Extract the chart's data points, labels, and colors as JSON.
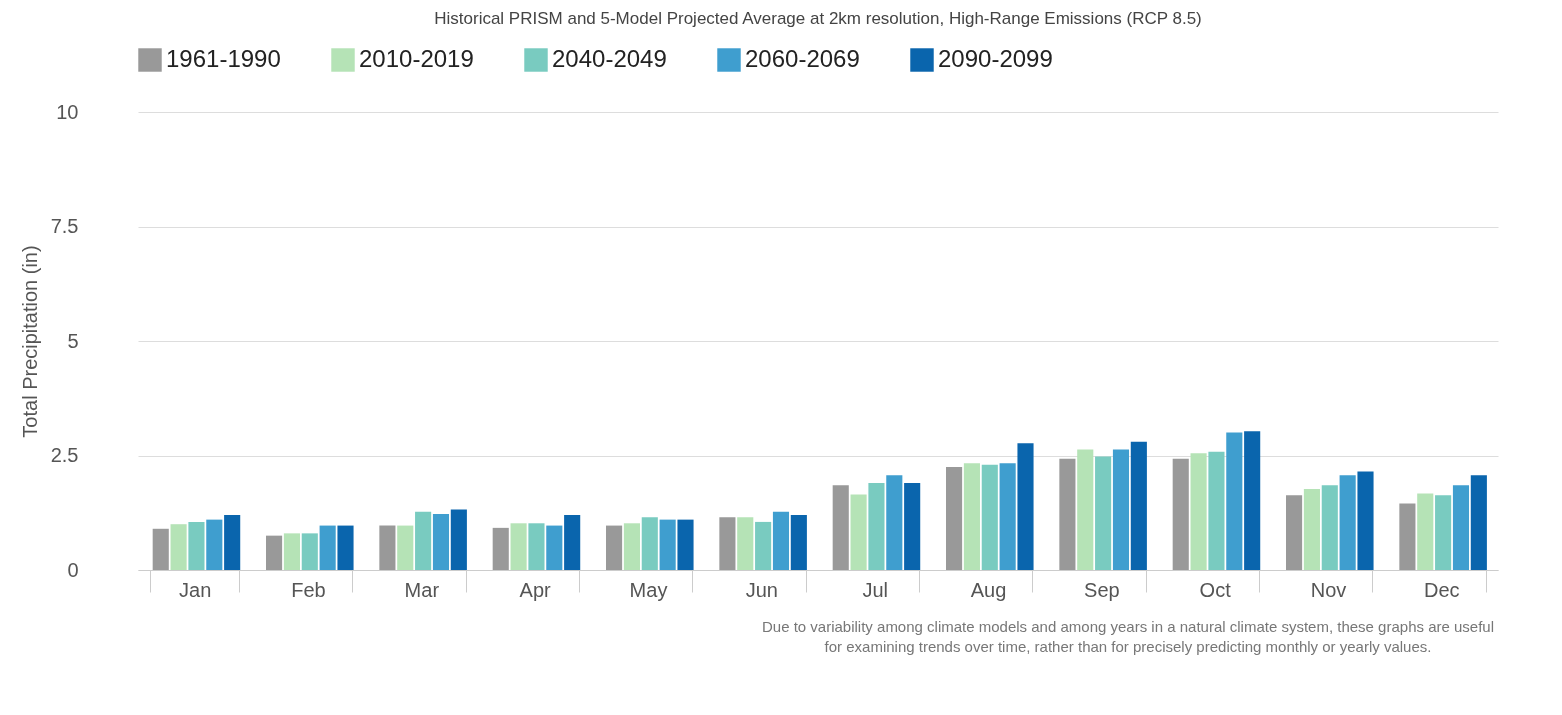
{
  "chart_data": {
    "type": "bar",
    "title": "Historical PRISM and 5-Model Projected Average at 2km resolution, High-Range Emissions (RCP 8.5)",
    "ylabel": "Total Precipitation (in)",
    "categories": [
      "Jan",
      "Feb",
      "Mar",
      "Apr",
      "May",
      "Jun",
      "Jul",
      "Aug",
      "Sep",
      "Oct",
      "Nov",
      "Dec"
    ],
    "series": [
      {
        "name": "1961-1990",
        "color": "#999999",
        "values": [
          0.9,
          0.75,
          0.97,
          0.92,
          0.97,
          1.15,
          1.85,
          2.25,
          2.43,
          2.43,
          1.63,
          1.45
        ]
      },
      {
        "name": "2010-2019",
        "color": "#b5e3b6",
        "values": [
          1.0,
          0.8,
          0.97,
          1.02,
          1.02,
          1.15,
          1.65,
          2.33,
          2.63,
          2.55,
          1.77,
          1.67
        ]
      },
      {
        "name": "2040-2049",
        "color": "#79cbc0",
        "values": [
          1.05,
          0.8,
          1.27,
          1.02,
          1.15,
          1.05,
          1.9,
          2.3,
          2.48,
          2.58,
          1.85,
          1.63
        ]
      },
      {
        "name": "2060-2069",
        "color": "#3f9ecf",
        "values": [
          1.1,
          0.97,
          1.22,
          0.97,
          1.1,
          1.27,
          2.07,
          2.33,
          2.63,
          3.0,
          2.07,
          1.85
        ]
      },
      {
        "name": "2090-2099",
        "color": "#0a65ad",
        "values": [
          1.2,
          0.97,
          1.32,
          1.2,
          1.1,
          1.2,
          1.9,
          2.77,
          2.8,
          3.03,
          2.15,
          2.07
        ]
      }
    ],
    "ylim": [
      0,
      10
    ],
    "yticks": [
      0,
      2.5,
      5,
      7.5,
      10
    ],
    "grid": "y",
    "legend": "top",
    "annotations": [
      "Due to variability among climate models and among years in a natural climate system, these graphs are useful for examining trends over time, rather than for precisely predicting monthly or yearly values."
    ]
  }
}
